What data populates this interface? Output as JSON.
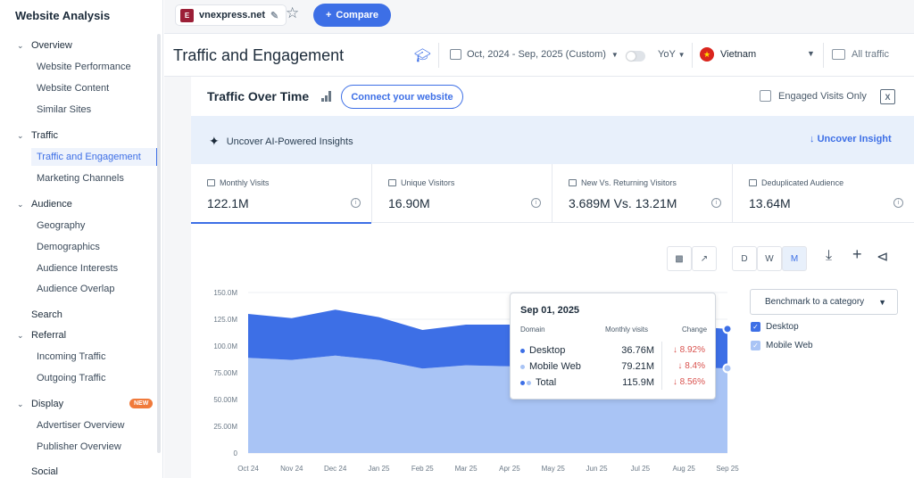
{
  "sidebar": {
    "title": "Website Analysis",
    "overview": "Overview",
    "website_performance": "Website Performance",
    "website_content": "Website Content",
    "similar_sites": "Similar Sites",
    "traffic": "Traffic",
    "traffic_engagement": "Traffic and Engagement",
    "marketing_channels": "Marketing Channels",
    "audience": "Audience",
    "geography": "Geography",
    "demographics": "Demographics",
    "audience_interests": "Audience Interests",
    "audience_overlap": "Audience Overlap",
    "search": "Search",
    "referral": "Referral",
    "incoming_traffic": "Incoming Traffic",
    "outgoing_traffic": "Outgoing Traffic",
    "display": "Display",
    "new_badge": "NEW",
    "advertiser_overview": "Advertiser Overview",
    "publisher_overview": "Publisher Overview",
    "social": "Social"
  },
  "topbar": {
    "domain": "vnexpress.net",
    "compare_label": "Compare"
  },
  "header": {
    "title": "Traffic and Engagement",
    "date_range": "Oct, 2024 - Sep, 2025 (Custom)",
    "yoy": "YoY",
    "country": "Vietnam",
    "traffic_type": "All traffic"
  },
  "section": {
    "title": "Traffic Over Time",
    "connect_label": "Connect your website",
    "engaged_label": "Engaged Visits Only",
    "ai_text": "Uncover AI-Powered Insights",
    "ai_link": "Uncover Insight"
  },
  "metrics": [
    {
      "label": "Monthly Visits",
      "value": "122.1M"
    },
    {
      "label": "Unique Visitors",
      "value": "16.90M"
    },
    {
      "label": "New Vs. Returning Visitors",
      "value": "3.689M Vs. 13.21M"
    },
    {
      "label": "Deduplicated Audience",
      "value": "13.64M"
    }
  ],
  "granularity": {
    "d": "D",
    "w": "W",
    "m": "M"
  },
  "benchmark_label": "Benchmark to a category",
  "legend": {
    "desktop": "Desktop",
    "mobile": "Mobile Web"
  },
  "colors": {
    "desktop": "#3d6fe6",
    "mobile": "#a9c4f5",
    "accent": "#3d6fe6"
  },
  "tooltip": {
    "date": "Sep 01, 2025",
    "col_domain": "Domain",
    "col_visits": "Monthly visits",
    "col_change": "Change",
    "rows": [
      {
        "name": "Desktop",
        "value": "36.76M",
        "change": "8.92%"
      },
      {
        "name": "Mobile Web",
        "value": "79.21M",
        "change": "8.4%"
      },
      {
        "name": "Total",
        "value": "115.9M",
        "change": "8.56%"
      }
    ]
  },
  "chart_data": {
    "type": "area",
    "stacked": true,
    "categories": [
      "Oct 24",
      "Nov 24",
      "Dec 24",
      "Jan 25",
      "Feb 25",
      "Mar 25",
      "Apr 25",
      "May 25",
      "Jun 25",
      "Jul 25",
      "Aug 25",
      "Sep 25"
    ],
    "series": [
      {
        "name": "Mobile Web",
        "values": [
          89,
          87,
          91,
          87,
          79,
          82,
          81,
          80,
          80,
          80,
          80,
          79.21
        ]
      },
      {
        "name": "Desktop",
        "values": [
          41,
          39,
          43,
          40,
          36,
          38,
          39,
          38,
          38,
          38,
          39,
          36.76
        ]
      }
    ],
    "ylim": [
      0,
      150
    ],
    "yticks": [
      "0",
      "25.00M",
      "50.00M",
      "75.00M",
      "100.0M",
      "125.0M",
      "150.0M"
    ],
    "grid": true,
    "legend": "right"
  }
}
